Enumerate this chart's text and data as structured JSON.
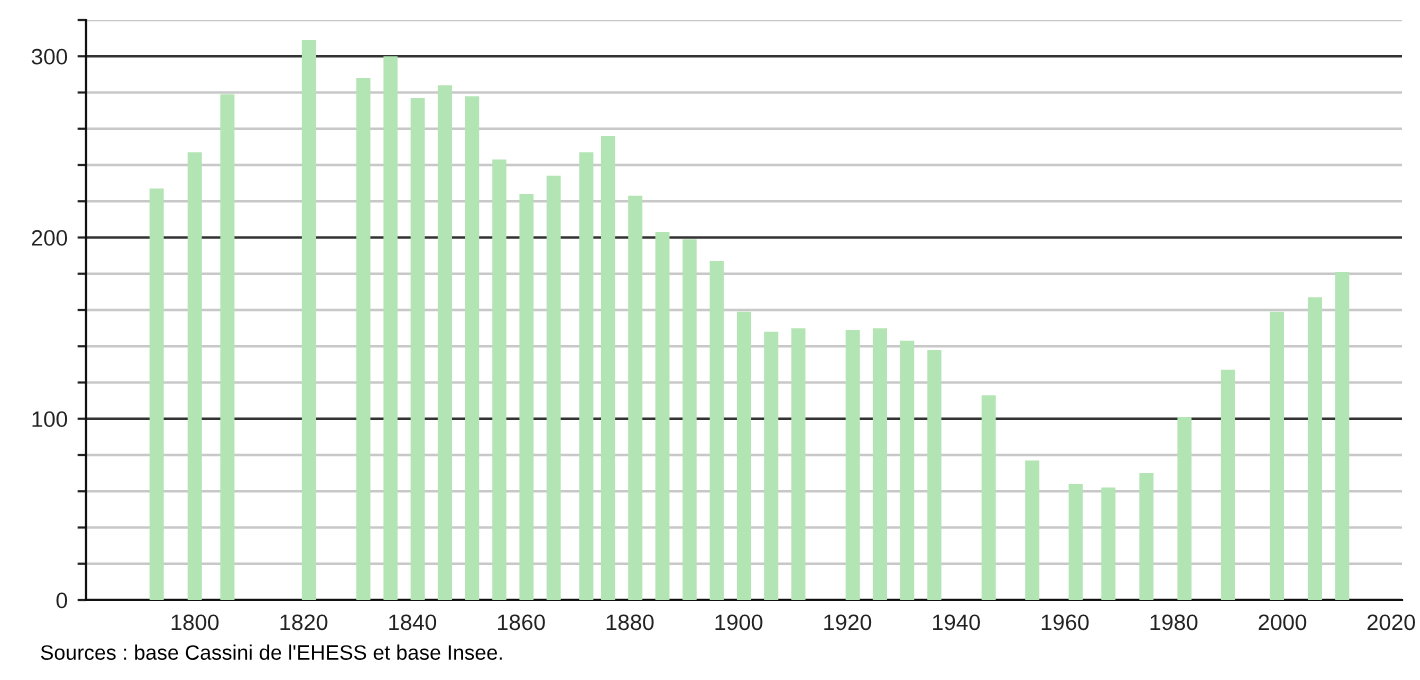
{
  "chart_data": {
    "type": "bar",
    "color": "#b3e4b3",
    "x": [
      1793,
      1800,
      1806,
      1821,
      1831,
      1836,
      1841,
      1846,
      1851,
      1856,
      1861,
      1866,
      1872,
      1876,
      1881,
      1886,
      1891,
      1896,
      1901,
      1906,
      1911,
      1921,
      1926,
      1931,
      1936,
      1946,
      1954,
      1962,
      1968,
      1975,
      1982,
      1990,
      1999,
      2006,
      2011
    ],
    "values": [
      227,
      247,
      279,
      309,
      288,
      300,
      277,
      284,
      278,
      243,
      224,
      234,
      247,
      256,
      223,
      203,
      199,
      187,
      159,
      148,
      150,
      149,
      150,
      143,
      138,
      113,
      77,
      64,
      62,
      70,
      101,
      127,
      159,
      167,
      181
    ],
    "xlim": [
      1780,
      2022
    ],
    "xticks": [
      1800,
      1820,
      1840,
      1860,
      1880,
      1900,
      1920,
      1940,
      1960,
      1980,
      2000,
      2020
    ],
    "ylim": [
      0,
      320
    ],
    "yticks": [
      0,
      {
        "value": 20,
        "label": null
      },
      {
        "value": 40,
        "label": null
      },
      {
        "value": 60,
        "label": null
      },
      {
        "value": 80,
        "label": null
      },
      100,
      {
        "value": 120,
        "label": null
      },
      {
        "value": 140,
        "label": null
      },
      {
        "value": 160,
        "label": null
      },
      {
        "value": 180,
        "label": null
      },
      200,
      {
        "value": 220,
        "label": null
      },
      {
        "value": 240,
        "label": null
      },
      {
        "value": 260,
        "label": null
      },
      {
        "value": 280,
        "label": null
      },
      300,
      {
        "value": 320,
        "label": null
      }
    ],
    "grid": "y",
    "annotations": [
      "Sources : base Cassini de l'EHESS et base Insee."
    ]
  }
}
